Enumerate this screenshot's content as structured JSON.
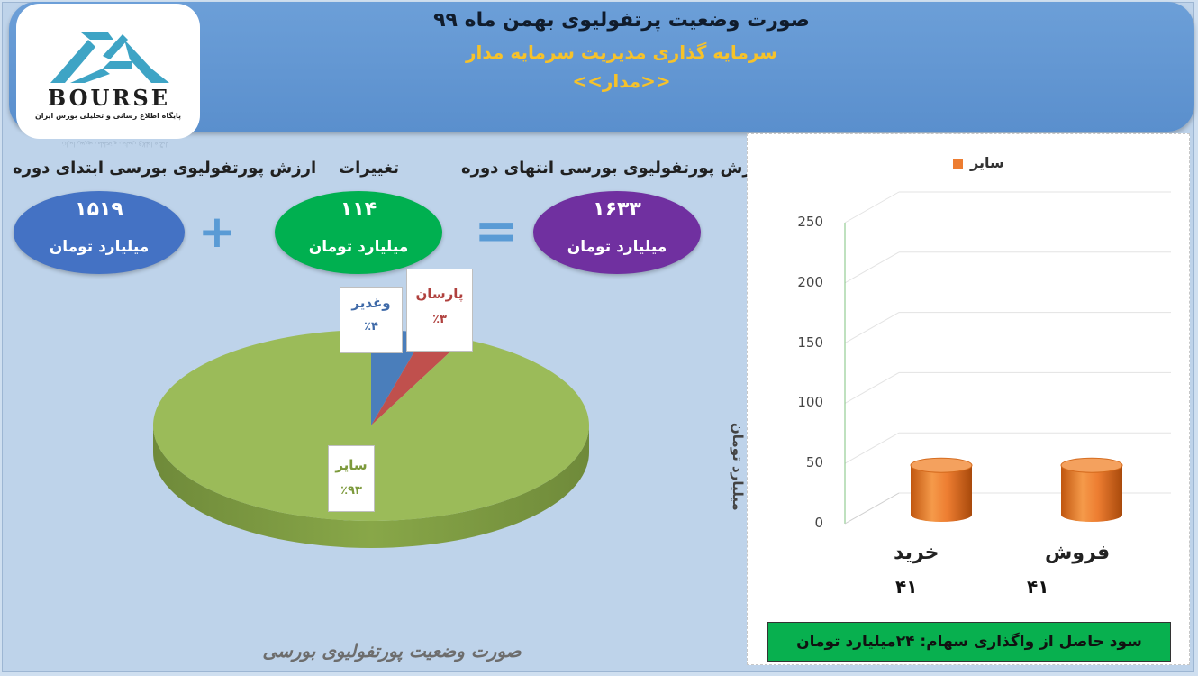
{
  "header": {
    "title": "صورت وضعیت پرتفولیوی بهمن ماه ۹۹",
    "subtitle": "سرمایه گذاری مدیریت سرمایه مدار",
    "name": "<<مدار>>"
  },
  "logo": {
    "text": "BOURSE",
    "subtitle": "پایگاه اطلاع رسانی و تحلیلی بورس ایران",
    "colors": {
      "mark": "#3ea4c5"
    }
  },
  "summary": {
    "start": {
      "label": "ارزش پورتفولیوی بورسی ابتدای دوره",
      "value": "۱۵۱۹",
      "unit": "میلیارد تومان",
      "color": "#4472c4"
    },
    "change": {
      "label": "تغییرات",
      "value": "۱۱۴",
      "unit": "میلیارد تومان",
      "color": "#00b050"
    },
    "end": {
      "label": "ارزش پورتفولیوی بورسی انتهای دوره",
      "value": "۱۶۳۳",
      "unit": "میلیارد تومان",
      "color": "#7030a0"
    },
    "plus_symbol": "+",
    "equals_symbol": "="
  },
  "chart_data": [
    {
      "type": "pie",
      "title": "",
      "slices": [
        {
          "label": "وغدیر",
          "percent_label": "٪۴",
          "value": 4,
          "color": "#4a7ebb"
        },
        {
          "label": "پارسان",
          "percent_label": "٪۳",
          "value": 3,
          "color": "#c0504d"
        },
        {
          "label": "سایر",
          "percent_label": "٪۹۳",
          "value": 93,
          "color": "#9bbb59"
        }
      ]
    },
    {
      "type": "bar",
      "title": "",
      "legend": {
        "entries": [
          "سایر"
        ],
        "placement": "top",
        "color": "#ed7d31"
      },
      "categories": [
        "خرید",
        "فروش"
      ],
      "series": [
        {
          "name": "سایر",
          "values": [
            41,
            41
          ],
          "color": "#ed7d31"
        }
      ],
      "data_labels": [
        "۴۱",
        "۴۱"
      ],
      "ylabel": "میلیارد تومان",
      "xlabel": "",
      "ylim": [
        0,
        250
      ],
      "yticks": [
        0,
        50,
        100,
        150,
        200,
        250
      ],
      "grid": true
    }
  ],
  "profit_note": "سود حاصل از واگذاری سهام: ۲۴میلیارد تومان",
  "footer": "صورت وضعیت پورتفولیوی بورسی"
}
